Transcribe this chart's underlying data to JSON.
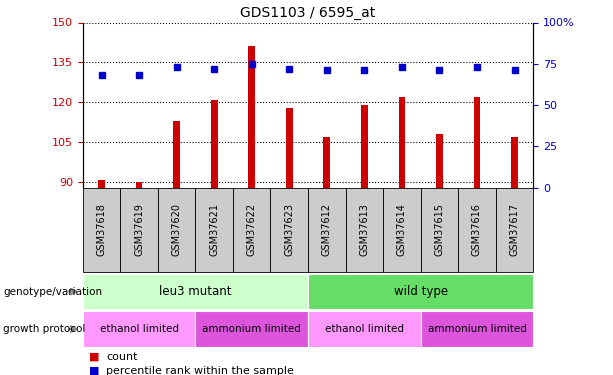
{
  "title": "GDS1103 / 6595_at",
  "samples": [
    "GSM37618",
    "GSM37619",
    "GSM37620",
    "GSM37621",
    "GSM37622",
    "GSM37623",
    "GSM37612",
    "GSM37613",
    "GSM37614",
    "GSM37615",
    "GSM37616",
    "GSM37617"
  ],
  "counts": [
    91,
    90,
    113,
    121,
    141,
    118,
    107,
    119,
    122,
    108,
    122,
    107
  ],
  "percentiles": [
    68,
    68,
    73,
    72,
    75,
    72,
    71,
    71,
    73,
    71,
    73,
    71
  ],
  "ylim_left": [
    88,
    150
  ],
  "ylim_right": [
    0,
    100
  ],
  "yticks_left": [
    90,
    105,
    120,
    135,
    150
  ],
  "yticks_right": [
    0,
    25,
    50,
    75,
    100
  ],
  "bar_color": "#CC0000",
  "dot_color": "#0000CC",
  "bar_width": 0.18,
  "dot_size": 5,
  "genotype_labels": [
    {
      "text": "leu3 mutant",
      "start": 0,
      "end": 6,
      "color": "#CCFFCC"
    },
    {
      "text": "wild type",
      "start": 6,
      "end": 12,
      "color": "#66DD66"
    }
  ],
  "protocol_labels": [
    {
      "text": "ethanol limited",
      "start": 0,
      "end": 3,
      "color": "#FF99FF"
    },
    {
      "text": "ammonium limited",
      "start": 3,
      "end": 6,
      "color": "#DD55DD"
    },
    {
      "text": "ethanol limited",
      "start": 6,
      "end": 9,
      "color": "#FF99FF"
    },
    {
      "text": "ammonium limited",
      "start": 9,
      "end": 12,
      "color": "#DD55DD"
    }
  ],
  "left_label_color": "#CC0000",
  "right_label_color": "#0000CC",
  "tick_bg_color": "#CCCCCC",
  "tick_border_color": "#000000",
  "legend_count_color": "#CC0000",
  "legend_pct_color": "#0000CC",
  "genotype_row_label": "genotype/variation",
  "protocol_row_label": "growth protocol",
  "arrow_color": "#888888"
}
